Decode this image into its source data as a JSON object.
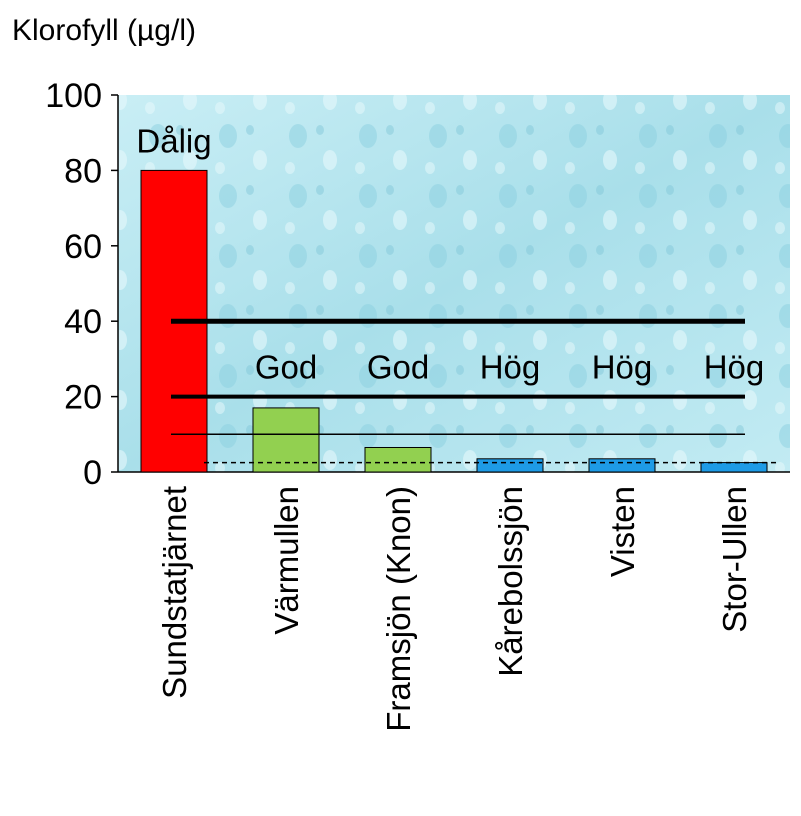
{
  "chart_data": {
    "type": "bar",
    "y_label": "Klorofyll (µg/l)",
    "categories": [
      "Sundstatjärnet",
      "Värmullen",
      "Framsjön (Knon)",
      "Kårebolssjön",
      "Visten",
      "Stor-Ullen"
    ],
    "values": [
      80,
      17,
      6.5,
      3.5,
      3.5,
      2.5
    ],
    "colors": [
      "#ff0000",
      "#92d050",
      "#92d050",
      "#1e9be6",
      "#1e9be6",
      "#1e9be6"
    ],
    "annotations": [
      "Dålig",
      "God",
      "God",
      "Hög",
      "Hög",
      "Hög"
    ],
    "reference_lines": [
      {
        "value": 40,
        "width": 5,
        "style": "solid"
      },
      {
        "value": 20,
        "width": 4,
        "style": "solid"
      },
      {
        "value": 10,
        "width": 1.5,
        "style": "solid"
      },
      {
        "value": 2.5,
        "width": 1.5,
        "style": "dashed"
      }
    ],
    "ylim": [
      0,
      100
    ],
    "yticks": [
      0,
      20,
      40,
      60,
      80,
      100
    ]
  }
}
